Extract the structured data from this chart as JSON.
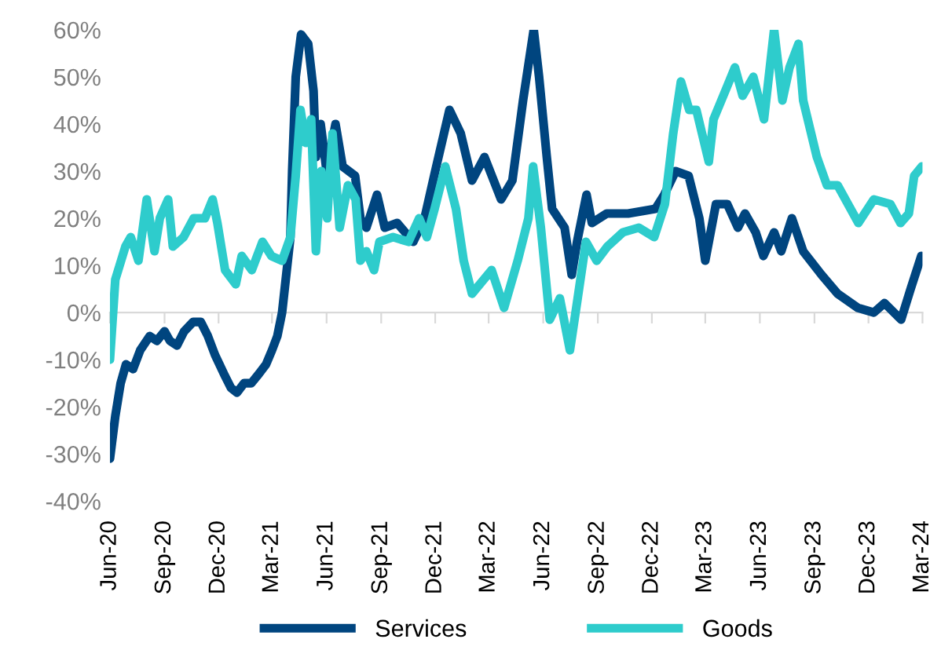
{
  "chart_data": {
    "type": "line",
    "series": [
      {
        "name": "Services",
        "color": "#00457f",
        "x": [
          "2020-06-01",
          "2020-06-10",
          "2020-06-19",
          "2020-06-28",
          "2020-07-10",
          "2020-07-22",
          "2020-08-07",
          "2020-08-19",
          "2020-09-01",
          "2020-09-10",
          "2020-09-22",
          "2020-10-04",
          "2020-10-19",
          "2020-11-01",
          "2020-11-13",
          "2020-11-25",
          "2020-12-10",
          "2020-12-22",
          "2021-01-01",
          "2021-01-13",
          "2021-01-25",
          "2021-02-07",
          "2021-02-19",
          "2021-03-01",
          "2021-03-10",
          "2021-03-18",
          "2021-04-01",
          "2021-04-04",
          "2021-04-10",
          "2021-04-19",
          "2021-05-01",
          "2021-05-10",
          "2021-05-14",
          "2021-05-22",
          "2021-06-01",
          "2021-06-16",
          "2021-06-28",
          "2021-07-19",
          "2021-07-28",
          "2021-08-07",
          "2021-08-25",
          "2021-09-07",
          "2021-09-28",
          "2021-10-25",
          "2021-11-13",
          "2021-12-01",
          "2021-12-25",
          "2022-01-13",
          "2022-02-01",
          "2022-02-22",
          "2022-03-22",
          "2022-04-10",
          "2022-04-28",
          "2022-05-16",
          "2022-05-25",
          "2022-06-07",
          "2022-06-16",
          "2022-07-07",
          "2022-07-19",
          "2022-07-28",
          "2022-08-13",
          "2022-08-22",
          "2022-09-16",
          "2022-10-22",
          "2022-12-07",
          "2022-12-22",
          "2023-01-10",
          "2023-02-01",
          "2023-02-19",
          "2023-03-01",
          "2023-03-19",
          "2023-04-07",
          "2023-04-25",
          "2023-05-07",
          "2023-05-25",
          "2023-06-07",
          "2023-06-25",
          "2023-07-07",
          "2023-07-25",
          "2023-08-13",
          "2023-09-13",
          "2023-10-10",
          "2023-11-13",
          "2023-12-10",
          "2023-12-28",
          "2024-01-25",
          "2024-02-10",
          "2024-02-28"
        ],
        "values": [
          -31,
          -22,
          -15,
          -11,
          -12,
          -8,
          -5,
          -6,
          -4,
          -6,
          -7,
          -4,
          -2,
          -2,
          -5,
          -9,
          -13,
          -16,
          -17,
          -15,
          -15,
          -13,
          -11,
          -8,
          -5,
          0,
          16,
          30,
          50,
          59,
          57,
          47,
          33,
          40,
          30,
          40,
          31,
          29,
          20,
          18,
          25,
          18,
          19,
          15,
          20,
          30,
          43,
          38,
          28,
          33,
          24,
          28,
          45,
          60,
          50,
          33,
          22,
          18,
          8,
          15,
          25,
          19,
          21,
          21,
          22,
          25,
          30,
          29,
          20,
          11,
          23,
          23,
          18,
          21,
          17,
          12,
          17,
          13,
          20,
          13,
          8,
          4,
          1,
          0,
          2,
          -1.5,
          5,
          12
        ]
      },
      {
        "name": "Goods",
        "color": "#2ecccc",
        "x": [
          "2020-06-01",
          "2020-06-10",
          "2020-06-27",
          "2020-07-06",
          "2020-07-19",
          "2020-08-02",
          "2020-08-15",
          "2020-08-24",
          "2020-09-07",
          "2020-09-15",
          "2020-10-03",
          "2020-10-20",
          "2020-11-08",
          "2020-11-21",
          "2020-11-29",
          "2020-12-12",
          "2020-12-30",
          "2021-01-09",
          "2021-01-26",
          "2021-02-13",
          "2021-02-28",
          "2021-03-18",
          "2021-04-01",
          "2021-04-10",
          "2021-04-18",
          "2021-04-27",
          "2021-05-06",
          "2021-05-14",
          "2021-05-23",
          "2021-06-02",
          "2021-06-11",
          "2021-06-23",
          "2021-07-07",
          "2021-07-20",
          "2021-07-28",
          "2021-08-07",
          "2021-08-20",
          "2021-08-29",
          "2021-09-21",
          "2021-10-17",
          "2021-11-04",
          "2021-11-17",
          "2021-11-30",
          "2021-12-18",
          "2022-01-05",
          "2022-01-18",
          "2022-02-01",
          "2022-03-06",
          "2022-03-27",
          "2022-04-19",
          "2022-05-07",
          "2022-05-15",
          "2022-05-28",
          "2022-06-12",
          "2022-06-29",
          "2022-07-16",
          "2022-07-29",
          "2022-08-12",
          "2022-08-30",
          "2022-09-17",
          "2022-10-13",
          "2022-11-09",
          "2022-12-05",
          "2022-12-23",
          "2023-01-06",
          "2023-01-19",
          "2023-02-02",
          "2023-02-14",
          "2023-03-07",
          "2023-03-15",
          "2023-04-07",
          "2023-04-20",
          "2023-05-03",
          "2023-05-21",
          "2023-06-08",
          "2023-06-25",
          "2023-07-09",
          "2023-07-21",
          "2023-08-05",
          "2023-08-13",
          "2023-09-05",
          "2023-09-22",
          "2023-10-10",
          "2023-11-14",
          "2023-12-10",
          "2024-01-07",
          "2024-01-24",
          "2024-02-07",
          "2024-02-16",
          "2024-02-29"
        ],
        "values": [
          -10,
          7,
          14,
          16,
          11,
          24,
          13,
          20,
          24,
          14,
          16,
          20,
          20,
          24,
          19,
          9,
          6,
          12,
          9,
          15,
          12,
          11,
          16,
          29,
          43,
          36,
          41,
          13,
          30,
          20,
          38,
          18,
          27,
          24,
          11,
          13,
          9,
          15,
          16,
          15,
          20,
          16,
          22,
          31,
          22,
          11,
          4,
          9,
          1,
          11,
          20,
          31,
          18,
          -1.5,
          3,
          -8,
          3,
          15,
          11,
          14,
          17,
          18,
          16,
          23,
          38,
          49,
          43,
          43,
          32,
          41,
          48,
          52,
          46,
          50,
          41,
          60,
          45,
          52,
          57,
          45,
          33,
          27,
          27,
          19,
          24,
          23,
          19,
          21,
          29,
          31
        ]
      }
    ],
    "xlim": [
      "2020-06",
      "2024-03"
    ],
    "xticks": [
      {
        "value": "2020-06",
        "label": "Jun-20"
      },
      {
        "value": "2020-09",
        "label": "Sep-20"
      },
      {
        "value": "2020-12",
        "label": "Dec-20"
      },
      {
        "value": "2021-03",
        "label": "Mar-21"
      },
      {
        "value": "2021-06",
        "label": "Jun-21"
      },
      {
        "value": "2021-09",
        "label": "Sep-21"
      },
      {
        "value": "2021-12",
        "label": "Dec-21"
      },
      {
        "value": "2022-03",
        "label": "Mar-22"
      },
      {
        "value": "2022-06",
        "label": "Jun-22"
      },
      {
        "value": "2022-09",
        "label": "Sep-22"
      },
      {
        "value": "2022-12",
        "label": "Dec-22"
      },
      {
        "value": "2023-03",
        "label": "Mar-23"
      },
      {
        "value": "2023-06",
        "label": "Jun-23"
      },
      {
        "value": "2023-09",
        "label": "Sep-23"
      },
      {
        "value": "2023-12",
        "label": "Dec-23"
      },
      {
        "value": "2024-03",
        "label": "Mar-24"
      }
    ],
    "ylim": [
      -40,
      60
    ],
    "yticks": [
      {
        "value": -40,
        "label": "-40%"
      },
      {
        "value": -30,
        "label": "-30%"
      },
      {
        "value": -20,
        "label": "-20%"
      },
      {
        "value": -10,
        "label": "-10%"
      },
      {
        "value": 0,
        "label": "0%"
      },
      {
        "value": 10,
        "label": "10%"
      },
      {
        "value": 20,
        "label": "20%"
      },
      {
        "value": 30,
        "label": "30%"
      },
      {
        "value": 40,
        "label": "40%"
      },
      {
        "value": 50,
        "label": "50%"
      },
      {
        "value": 60,
        "label": "60%"
      }
    ],
    "legend": "bottom",
    "marker": "none",
    "line_style": "solid"
  }
}
